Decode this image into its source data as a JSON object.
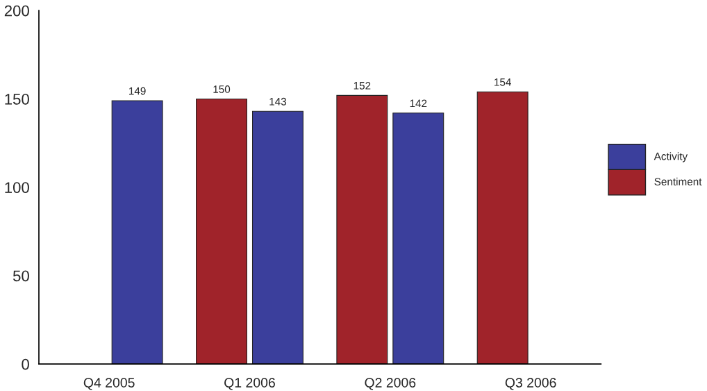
{
  "chart_data": {
    "type": "bar",
    "categories": [
      "Q4 2005",
      "Q1 2006",
      "Q2 2006",
      "Q3 2006"
    ],
    "series": [
      {
        "name": "Sentiment",
        "color": "#a0232a",
        "values": [
          null,
          150,
          152,
          154
        ]
      },
      {
        "name": "Activity",
        "color": "#3b3f9c",
        "values": [
          149,
          143,
          142,
          null
        ]
      }
    ],
    "ylim": [
      0,
      200
    ],
    "yticks": [
      0,
      50,
      100,
      150,
      200
    ],
    "data_labels": true,
    "grid": false,
    "legend": "right"
  }
}
